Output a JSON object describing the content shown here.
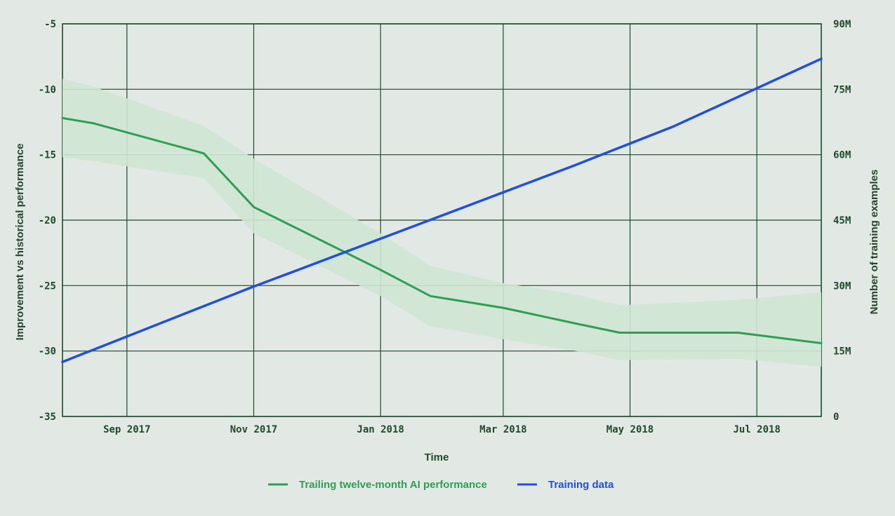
{
  "chart_data": {
    "type": "line",
    "xlabel": "Time",
    "ylabel_left": "Improvement vs historical performance",
    "ylabel_right": "Number of training examples",
    "x_ticks": [
      "Sep 2017",
      "Nov 2017",
      "Jan 2018",
      "Mar 2018",
      "May 2018",
      "Jul 2018"
    ],
    "x_tick_dates": [
      "2017-09-01",
      "2017-11-01",
      "2018-01-01",
      "2018-03-01",
      "2018-05-01",
      "2018-07-01"
    ],
    "xlim": [
      "2017-08-01",
      "2018-08-01"
    ],
    "y_left_ticks": [
      "-5",
      "-10",
      "-15",
      "-20",
      "-25",
      "-30",
      "-35"
    ],
    "y_left_tick_values": [
      -5,
      -10,
      -15,
      -20,
      -25,
      -30,
      -35
    ],
    "ylim_left": [
      -35,
      -5
    ],
    "y_right_ticks": [
      "90M",
      "75M",
      "60M",
      "45M",
      "30M",
      "15M",
      "0"
    ],
    "y_right_tick_values": [
      90,
      75,
      60,
      45,
      30,
      15,
      0
    ],
    "ylim_right": [
      0,
      90
    ],
    "y_right_unit": "millions of training examples",
    "grid": true,
    "legend_position": "bottom-center",
    "series": [
      {
        "name": "Trailing twelve-month AI performance",
        "axis": "left",
        "color": "#2f9e55",
        "band_color": "#cfe6d3",
        "x": [
          "2017-08-01",
          "2017-08-16",
          "2017-10-08",
          "2017-11-01",
          "2018-01-01",
          "2018-01-25",
          "2018-03-01",
          "2018-04-05",
          "2018-04-26",
          "2018-06-22",
          "2018-08-01"
        ],
        "y": [
          -12.2,
          -12.6,
          -14.9,
          -19.0,
          -23.8,
          -25.8,
          -26.7,
          -27.9,
          -28.6,
          -28.6,
          -29.4
        ],
        "band_upper": [
          -9.2,
          -9.8,
          -12.8,
          -15.3,
          -21.0,
          -23.5,
          -24.8,
          -25.7,
          -26.5,
          -26.1,
          -25.5
        ],
        "band_lower": [
          -15.2,
          -15.5,
          -16.8,
          -21.0,
          -25.8,
          -28.1,
          -29.1,
          -30.0,
          -30.7,
          -30.6,
          -31.2
        ]
      },
      {
        "name": "Training data",
        "axis": "right",
        "color": "#1f4fe0",
        "x": [
          "2017-08-01",
          "2017-11-01",
          "2017-11-19",
          "2018-04-04",
          "2018-05-22",
          "2018-08-01"
        ],
        "y": [
          12.5,
          29.8,
          33.0,
          57.5,
          66.5,
          82.0
        ]
      }
    ]
  }
}
